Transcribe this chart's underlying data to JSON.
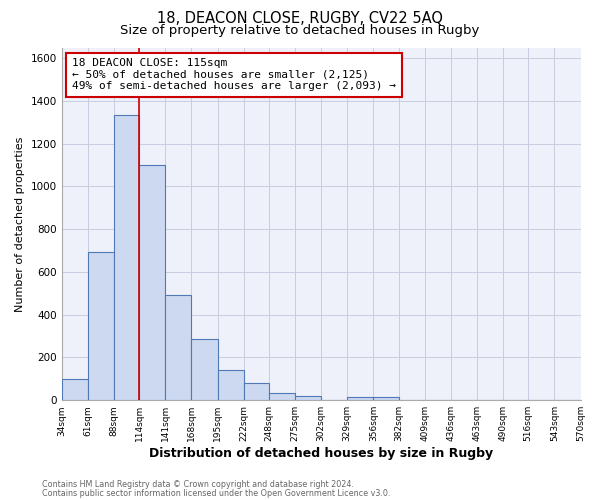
{
  "title": "18, DEACON CLOSE, RUGBY, CV22 5AQ",
  "subtitle": "Size of property relative to detached houses in Rugby",
  "xlabel": "Distribution of detached houses by size in Rugby",
  "ylabel": "Number of detached properties",
  "bar_values": [
    100,
    695,
    1335,
    1100,
    490,
    285,
    140,
    80,
    35,
    20,
    0,
    15,
    15,
    0,
    0,
    0,
    0,
    0,
    0,
    0
  ],
  "bar_edges": [
    34,
    61,
    88,
    114,
    141,
    168,
    195,
    222,
    248,
    275,
    302,
    329,
    356,
    382,
    409,
    436,
    463,
    490,
    516,
    543,
    570
  ],
  "tick_labels": [
    "34sqm",
    "61sqm",
    "88sqm",
    "114sqm",
    "141sqm",
    "168sqm",
    "195sqm",
    "222sqm",
    "248sqm",
    "275sqm",
    "302sqm",
    "329sqm",
    "356sqm",
    "382sqm",
    "409sqm",
    "436sqm",
    "463sqm",
    "490sqm",
    "516sqm",
    "543sqm",
    "570sqm"
  ],
  "bar_color": "#ccd9f0",
  "bar_edge_color": "#4f7ab5",
  "vline_x": 114,
  "vline_color": "#cc0000",
  "annotation_line1": "18 DEACON CLOSE: 115sqm",
  "annotation_line2": "← 50% of detached houses are smaller (2,125)",
  "annotation_line3": "49% of semi-detached houses are larger (2,093) →",
  "ylim": [
    0,
    1650
  ],
  "yticks": [
    0,
    200,
    400,
    600,
    800,
    1000,
    1200,
    1400,
    1600
  ],
  "bg_color": "#ffffff",
  "plot_bg_color": "#eef0fa",
  "footer_line1": "Contains HM Land Registry data © Crown copyright and database right 2024.",
  "footer_line2": "Contains public sector information licensed under the Open Government Licence v3.0.",
  "title_fontsize": 10.5,
  "subtitle_fontsize": 9.5,
  "annotation_fontsize": 8.0,
  "ylabel_fontsize": 8,
  "xlabel_fontsize": 9,
  "grid_color": "#c8cce0",
  "tick_fontsize": 6.5,
  "ytick_fontsize": 7.5
}
